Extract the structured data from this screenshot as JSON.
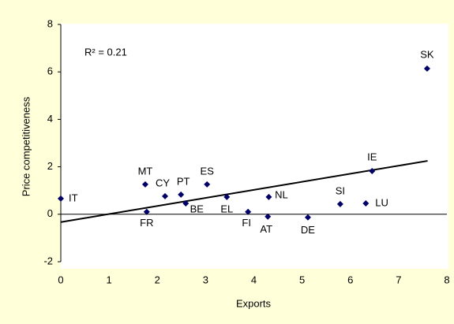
{
  "chart_data": {
    "type": "scatter",
    "x_label": "Exports",
    "y_label": "Price competitiveness",
    "annotation": "R² = 0.21",
    "labels": [
      "IT",
      "MT",
      "CY",
      "PT",
      "ES",
      "BE",
      "FR",
      "EL",
      "FI",
      "AT",
      "NL",
      "DE",
      "SI",
      "LU",
      "IE",
      "SK"
    ],
    "x": [
      0,
      1.75,
      2.16,
      2.49,
      3.03,
      2.59,
      1.78,
      3.44,
      3.88,
      4.29,
      4.31,
      5.12,
      5.79,
      6.32,
      6.45,
      7.59
    ],
    "values": [
      0.66,
      1.26,
      0.76,
      0.83,
      1.26,
      0.46,
      0.1,
      0.73,
      0.1,
      -0.1,
      0.73,
      -0.13,
      0.43,
      0.46,
      1.82,
      6.14
    ],
    "color": "#000066",
    "trendline": {
      "x": [
        0,
        7.6
      ],
      "y": [
        -0.33,
        2.25
      ]
    },
    "xlim": [
      0,
      8
    ],
    "ylim": [
      -2,
      8
    ],
    "xticks": [
      0,
      1,
      2,
      3,
      4,
      5,
      6,
      7,
      8
    ],
    "yticks": [
      -2,
      0,
      2,
      4,
      6,
      8
    ]
  }
}
